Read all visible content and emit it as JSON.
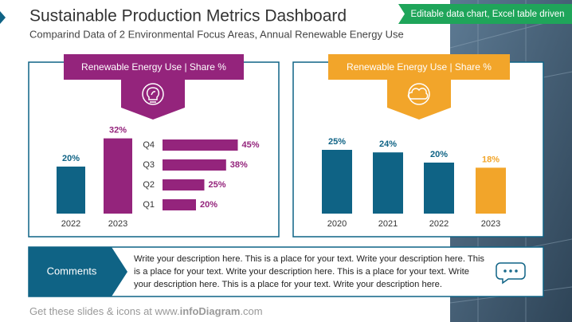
{
  "header": {
    "title": "Sustainable Production Metrics Dashboard",
    "subtitle": "Comparind Data of 2 Environmental Focus Areas, Annual Renewable Energy Use",
    "badge": "Editable data chart, Excel table driven"
  },
  "chart_data": [
    {
      "type": "bar",
      "title": "Renewable Energy Use | Share %",
      "categories": [
        "2022",
        "2023"
      ],
      "values": [
        20,
        32
      ],
      "value_labels": [
        "20%",
        "32%"
      ],
      "colors": [
        "#0f6385",
        "#94247c"
      ]
    },
    {
      "type": "hbar",
      "categories": [
        "Q4",
        "Q3",
        "Q2",
        "Q1"
      ],
      "values": [
        45,
        38,
        25,
        20
      ],
      "value_labels": [
        "45%",
        "38%",
        "25%",
        "20%"
      ],
      "color": "#94247c"
    },
    {
      "type": "bar",
      "title": "Renewable Energy Use | Share %",
      "categories": [
        "2020",
        "2021",
        "2022",
        "2023"
      ],
      "values": [
        25,
        24,
        20,
        18
      ],
      "value_labels": [
        "25%",
        "24%",
        "20%",
        "18%"
      ],
      "colors": [
        "#0f6385",
        "#0f6385",
        "#0f6385",
        "#f2a52a"
      ]
    }
  ],
  "comments": {
    "label": "Comments",
    "lines": [
      "Write your description here. This is a place for your text. Write your description here. This",
      "is a place for your text. Write your description here. This is a place for your text. Write",
      "your description here. This is a place for your text. Write your description here."
    ]
  },
  "footer": {
    "prefix": "Get these slides & icons at www.",
    "brand": "infoDiagram",
    "suffix": ".com"
  }
}
